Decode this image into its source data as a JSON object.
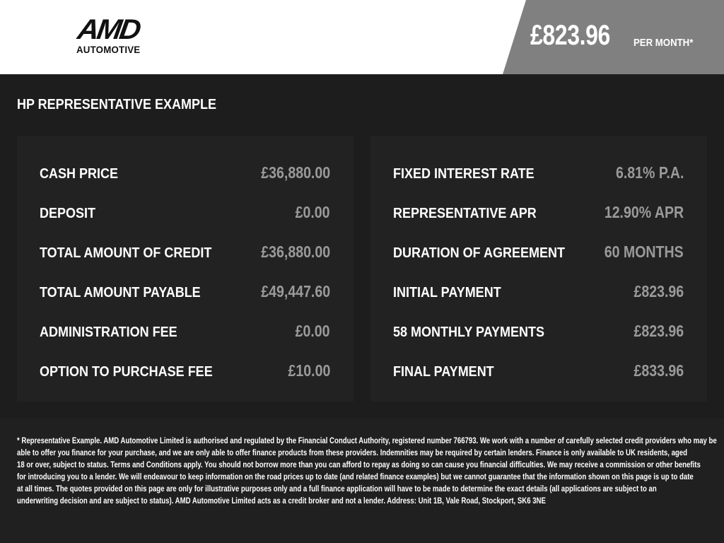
{
  "header": {
    "logo_text": "AMD",
    "logo_sub": "AUTOMOTIVE",
    "monthly_price": "£823.96",
    "per_month": "PER MONTH*"
  },
  "section_title": "HP REPRESENTATIVE EXAMPLE",
  "left_panel": [
    {
      "label": "CASH PRICE",
      "value": "£36,880.00"
    },
    {
      "label": "DEPOSIT",
      "value": "£0.00"
    },
    {
      "label": "TOTAL AMOUNT OF CREDIT",
      "value": "£36,880.00"
    },
    {
      "label": "TOTAL AMOUNT PAYABLE",
      "value": "£49,447.60"
    },
    {
      "label": "ADMINISTRATION FEE",
      "value": "£0.00"
    },
    {
      "label": "OPTION TO PURCHASE FEE",
      "value": "£10.00"
    }
  ],
  "right_panel": [
    {
      "label": "FIXED INTEREST RATE",
      "value": "6.81% P.A."
    },
    {
      "label": "REPRESENTATIVE APR",
      "value": "12.90% APR"
    },
    {
      "label": "DURATION OF AGREEMENT",
      "value": "60 MONTHS"
    },
    {
      "label": "INITIAL PAYMENT",
      "value": "£823.96"
    },
    {
      "label": "58 MONTHLY PAYMENTS",
      "value": "£823.96"
    },
    {
      "label": "FINAL PAYMENT",
      "value": "£833.96"
    }
  ],
  "disclaimer_lines": [
    "* Representative Example. AMD Automotive Limited is authorised and regulated by the Financial Conduct Authority, registered number 766793. We work with a number of carefully selected credit providers who may be",
    "able to offer you finance for your purchase, and we are only able to offer finance products from these providers. Indemnities may be required by certain lenders. Finance is only available to UK residents, aged",
    "18 or over, subject to status. Terms and Conditions apply. You should not borrow more than you can afford to repay as doing so can cause you financial difficulties. We may receive a commission or other benefits",
    "for introducing you to a lender. We will endeavour to keep information on the road prices up to date (and related finance examples) but we cannot guarantee that the information shown on this page is up to date",
    "at all times. The quotes provided on this page are only for illustrative purposes only and a full finance application will have to be made to determine the exact details (all applications are subject to an",
    "underwriting decision and are subject to status). AMD Automotive Limited acts as a credit broker and not a lender. Address: Unit 1B, Vale Road, Stockport, SK6 3NE"
  ]
}
